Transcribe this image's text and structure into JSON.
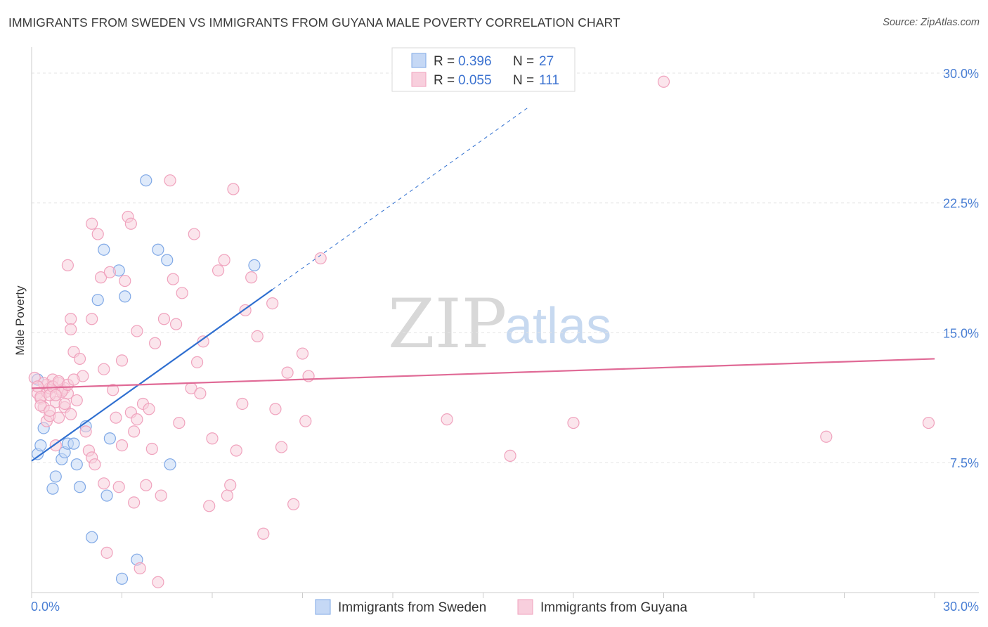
{
  "chart_data": {
    "type": "scatter",
    "title": "IMMIGRANTS FROM SWEDEN VS IMMIGRANTS FROM GUYANA MALE POVERTY CORRELATION CHART",
    "source": "Source: ZipAtlas.com",
    "ylabel": "Male Poverty",
    "xlim": [
      0,
      30
    ],
    "ylim": [
      0,
      31.5
    ],
    "x_tick_labels": {
      "left": "0.0%",
      "right": "30.0%"
    },
    "y_ticks": [
      {
        "value": 7.5,
        "label": "7.5%"
      },
      {
        "value": 15.0,
        "label": "15.0%"
      },
      {
        "value": 22.5,
        "label": "22.5%"
      },
      {
        "value": 30.0,
        "label": "30.0%"
      }
    ],
    "watermark": {
      "zip": "ZIP",
      "atlas": "atlas"
    },
    "legend": {
      "rows": [
        {
          "r_label": "R =",
          "r_value": "0.396",
          "n_label": "N =",
          "n_value": "27"
        },
        {
          "r_label": "R =",
          "r_value": "0.055",
          "n_label": "N =",
          "n_value": "111"
        }
      ]
    },
    "series": [
      {
        "name": "Immigrants from Sweden",
        "color": "#7fa8e6",
        "fill": "#c5d8f5",
        "line_color": "#2f6fd0",
        "trend": {
          "x0": 0,
          "y0": 7.6,
          "x1": 8.0,
          "y1": 17.5,
          "dash_to_x": 16.5
        },
        "points": [
          [
            0.2,
            12.3
          ],
          [
            0.2,
            8.0
          ],
          [
            0.3,
            8.5
          ],
          [
            0.4,
            9.5
          ],
          [
            0.7,
            6.0
          ],
          [
            0.8,
            6.7
          ],
          [
            1.0,
            7.7
          ],
          [
            1.1,
            8.1
          ],
          [
            1.2,
            8.6
          ],
          [
            1.4,
            8.6
          ],
          [
            1.5,
            7.4
          ],
          [
            1.6,
            6.1
          ],
          [
            1.8,
            9.6
          ],
          [
            2.0,
            3.2
          ],
          [
            2.2,
            16.9
          ],
          [
            2.4,
            19.8
          ],
          [
            2.5,
            5.6
          ],
          [
            2.6,
            8.9
          ],
          [
            2.9,
            18.6
          ],
          [
            3.1,
            17.1
          ],
          [
            3.0,
            0.8
          ],
          [
            3.5,
            1.9
          ],
          [
            3.8,
            23.8
          ],
          [
            4.2,
            19.8
          ],
          [
            4.5,
            19.2
          ],
          [
            4.6,
            7.4
          ],
          [
            7.4,
            18.9
          ]
        ]
      },
      {
        "name": "Immigrants from Guyana",
        "color": "#f0a2bd",
        "fill": "#f8cfdd",
        "line_color": "#e06a96",
        "trend": {
          "x0": 0,
          "y0": 11.8,
          "x1": 30.0,
          "y1": 13.5
        },
        "points": [
          [
            0.1,
            12.4
          ],
          [
            0.2,
            11.5
          ],
          [
            0.3,
            11.2
          ],
          [
            0.4,
            10.7
          ],
          [
            0.5,
            11.6
          ],
          [
            0.5,
            12.0
          ],
          [
            0.6,
            11.8
          ],
          [
            0.7,
            12.3
          ],
          [
            0.8,
            11.0
          ],
          [
            0.9,
            12.1
          ],
          [
            1.0,
            11.7
          ],
          [
            1.1,
            11.8
          ],
          [
            1.2,
            11.5
          ],
          [
            0.5,
            9.9
          ],
          [
            0.6,
            10.2
          ],
          [
            0.8,
            8.5
          ],
          [
            0.9,
            10.1
          ],
          [
            1.1,
            10.7
          ],
          [
            1.2,
            18.9
          ],
          [
            1.3,
            15.8
          ],
          [
            1.3,
            15.2
          ],
          [
            1.4,
            13.9
          ],
          [
            1.6,
            13.5
          ],
          [
            1.7,
            12.5
          ],
          [
            1.8,
            9.3
          ],
          [
            1.9,
            8.2
          ],
          [
            2.0,
            15.8
          ],
          [
            2.0,
            7.8
          ],
          [
            2.1,
            7.4
          ],
          [
            2.0,
            21.3
          ],
          [
            2.2,
            20.7
          ],
          [
            2.3,
            18.2
          ],
          [
            2.4,
            12.9
          ],
          [
            2.4,
            6.3
          ],
          [
            2.5,
            2.3
          ],
          [
            2.6,
            18.5
          ],
          [
            2.7,
            11.7
          ],
          [
            2.8,
            10.1
          ],
          [
            2.9,
            6.1
          ],
          [
            3.0,
            13.4
          ],
          [
            3.0,
            8.5
          ],
          [
            3.1,
            18.0
          ],
          [
            3.2,
            21.7
          ],
          [
            3.3,
            21.3
          ],
          [
            3.3,
            10.4
          ],
          [
            3.4,
            9.3
          ],
          [
            3.4,
            5.2
          ],
          [
            3.5,
            15.1
          ],
          [
            3.5,
            10.0
          ],
          [
            3.6,
            1.4
          ],
          [
            3.7,
            10.9
          ],
          [
            3.8,
            6.2
          ],
          [
            3.9,
            10.6
          ],
          [
            4.0,
            8.3
          ],
          [
            4.1,
            14.4
          ],
          [
            4.2,
            0.6
          ],
          [
            4.3,
            5.6
          ],
          [
            4.4,
            15.8
          ],
          [
            4.6,
            23.8
          ],
          [
            4.7,
            18.1
          ],
          [
            4.8,
            15.5
          ],
          [
            4.9,
            9.8
          ],
          [
            5.0,
            17.3
          ],
          [
            5.3,
            11.8
          ],
          [
            5.4,
            20.7
          ],
          [
            5.5,
            13.3
          ],
          [
            5.6,
            11.5
          ],
          [
            5.7,
            14.5
          ],
          [
            5.9,
            5.0
          ],
          [
            6.0,
            8.9
          ],
          [
            6.2,
            18.6
          ],
          [
            6.4,
            19.2
          ],
          [
            6.5,
            5.6
          ],
          [
            6.6,
            6.2
          ],
          [
            6.7,
            23.3
          ],
          [
            6.8,
            8.2
          ],
          [
            7.0,
            10.9
          ],
          [
            7.1,
            16.3
          ],
          [
            7.3,
            18.2
          ],
          [
            7.5,
            14.8
          ],
          [
            7.7,
            3.4
          ],
          [
            8.0,
            16.7
          ],
          [
            8.1,
            10.6
          ],
          [
            8.3,
            8.4
          ],
          [
            8.5,
            12.7
          ],
          [
            8.7,
            5.1
          ],
          [
            9.0,
            13.8
          ],
          [
            9.1,
            9.9
          ],
          [
            9.2,
            12.5
          ],
          [
            9.6,
            19.3
          ],
          [
            13.8,
            10.0
          ],
          [
            15.9,
            7.9
          ],
          [
            18.0,
            9.8
          ],
          [
            21.0,
            29.5
          ],
          [
            26.4,
            9.0
          ],
          [
            29.8,
            9.8
          ],
          [
            0.3,
            11.3
          ],
          [
            0.4,
            12.1
          ],
          [
            0.6,
            11.4
          ],
          [
            0.7,
            11.9
          ],
          [
            0.9,
            12.2
          ],
          [
            1.0,
            11.6
          ],
          [
            1.2,
            12.0
          ],
          [
            1.4,
            12.3
          ],
          [
            0.2,
            11.9
          ],
          [
            0.8,
            11.4
          ],
          [
            1.5,
            11.1
          ],
          [
            0.3,
            10.8
          ],
          [
            0.6,
            10.5
          ],
          [
            1.1,
            10.9
          ],
          [
            1.3,
            10.3
          ]
        ]
      }
    ]
  }
}
